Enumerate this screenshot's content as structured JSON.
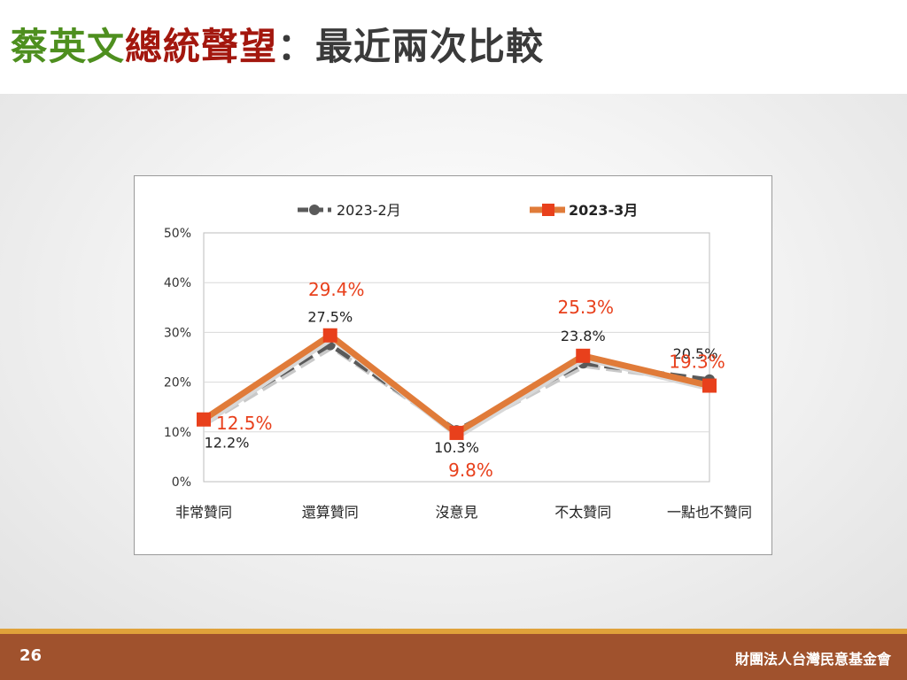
{
  "slide": {
    "title_part1": "蔡英文",
    "title_part2": "總統聲望",
    "title_part3": "：最近兩次比較",
    "page_number": "26",
    "organization": "財團法人台灣民意基金會",
    "colors": {
      "title_green": "#4e8f1f",
      "title_red": "#a3170e",
      "footer": "#a0522d",
      "footer_stripe": "#e0a23a"
    }
  },
  "chart_data": {
    "type": "line",
    "categories": [
      "非常贊同",
      "還算贊同",
      "沒意見",
      "不太贊同",
      "一點也不贊同"
    ],
    "series": [
      {
        "name": "2023-2月",
        "values": [
          12.2,
          27.5,
          10.3,
          23.8,
          20.5
        ],
        "labels": [
          "12.2%",
          "27.5%",
          "10.3%",
          "23.8%",
          "20.5%"
        ],
        "color": "#5a5a5a",
        "style": "dashed",
        "marker": "circle"
      },
      {
        "name": "2023-3月",
        "values": [
          12.5,
          29.4,
          9.8,
          25.3,
          19.3
        ],
        "labels": [
          "12.5%",
          "29.4%",
          "9.8%",
          "25.3%",
          "19.3%"
        ],
        "color": "#e07b39",
        "marker_color": "#e8401c",
        "label_color": "#e8401c",
        "style": "solid",
        "marker": "square"
      }
    ],
    "y_ticks": [
      "0%",
      "10%",
      "20%",
      "30%",
      "40%",
      "50%"
    ],
    "ylim": [
      0,
      50
    ],
    "grid": true,
    "legend": "top-center"
  }
}
